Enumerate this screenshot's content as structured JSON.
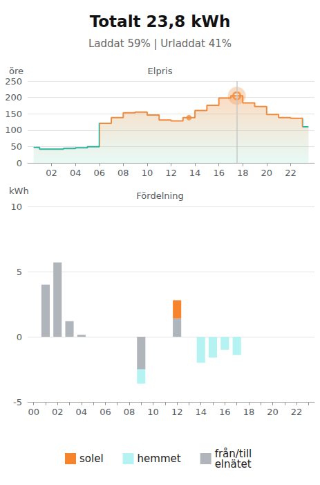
{
  "header": {
    "title": "Totalt 23,8 kWh",
    "subtitle": "Laddat 59% | Urladdat 41%"
  },
  "chart_data": [
    {
      "type": "line",
      "title": "Elpris",
      "y_label": "öre",
      "line_style": "step",
      "x": [
        0.5,
        1.5,
        2.5,
        3.5,
        4.5,
        5.5,
        6.5,
        7.5,
        8.5,
        9.5,
        10.5,
        11.5,
        12.5,
        13.5,
        14.5,
        15.5,
        16.5,
        17.5,
        18.5,
        19.5,
        20.5,
        21.5,
        22.5,
        23.5
      ],
      "values": [
        47,
        42,
        42,
        44,
        46,
        49,
        121,
        138,
        153,
        155,
        146,
        131,
        128,
        138,
        160,
        176,
        198,
        205,
        183,
        172,
        148,
        138,
        136,
        110
      ],
      "colors": [
        "#2ab3a0",
        "#2ab3a0",
        "#2ab3a0",
        "#2ab3a0",
        "#2ab3a0",
        "#2ab3a0",
        "#f08a3c",
        "#f08a3c",
        "#f08a3c",
        "#f08a3c",
        "#f08a3c",
        "#f08a3c",
        "#f08a3c",
        "#f08a3c",
        "#f08a3c",
        "#f08a3c",
        "#f08a3c",
        "#f08a3c",
        "#f08a3c",
        "#f08a3c",
        "#f08a3c",
        "#f08a3c",
        "#f08a3c",
        "#2ab3a0"
      ],
      "current_x": 13.5,
      "highlight_x": 17.5,
      "xlim": [
        0,
        24
      ],
      "xticks": [
        {
          "value": 2,
          "label": "02"
        },
        {
          "value": 4,
          "label": "04"
        },
        {
          "value": 6,
          "label": "06"
        },
        {
          "value": 8,
          "label": "08"
        },
        {
          "value": 10,
          "label": "10"
        },
        {
          "value": 12,
          "label": "12"
        },
        {
          "value": 14,
          "label": "14"
        },
        {
          "value": 16,
          "label": "16"
        },
        {
          "value": 18,
          "label": "18"
        },
        {
          "value": 20,
          "label": "20"
        },
        {
          "value": 22,
          "label": "22"
        }
      ],
      "ylim": [
        0,
        250
      ],
      "yticks": [
        0,
        50,
        100,
        150,
        200,
        250
      ],
      "grid": true
    },
    {
      "type": "bar",
      "title": "Fördelning",
      "y_label": "kWh",
      "categories": [
        "00",
        null,
        "02",
        null,
        "04",
        null,
        "06",
        null,
        "08",
        null,
        "10",
        null,
        "12",
        null,
        "14",
        null,
        "16",
        null,
        "18",
        null,
        "20",
        null,
        "22",
        null
      ],
      "series": [
        {
          "name": "solel",
          "color": "#f5842c",
          "values": [
            0,
            0,
            0,
            0,
            0,
            0,
            0,
            0,
            0,
            0,
            0,
            0,
            1.4,
            0,
            0,
            0,
            0,
            0,
            0,
            0,
            0,
            0,
            0,
            0
          ]
        },
        {
          "name": "hemmet",
          "color": "#b5f3f3",
          "values": [
            0,
            0,
            0,
            0,
            0,
            0,
            0,
            0,
            0,
            -1.1,
            0,
            0,
            0,
            0,
            -2.0,
            -1.6,
            -1.0,
            -1.4,
            0,
            0,
            0,
            0,
            0,
            0
          ]
        },
        {
          "name": "från/till elnätet",
          "color": "#b0b5bb",
          "values": [
            0,
            4.0,
            5.7,
            1.2,
            0.15,
            0,
            0,
            0,
            0,
            -2.5,
            0,
            0,
            1.4,
            0,
            0,
            0,
            0,
            0,
            0,
            0,
            0,
            0,
            0,
            0
          ]
        }
      ],
      "stacked": true,
      "ylim": [
        -5,
        10
      ],
      "yticks": [
        -5,
        0,
        5,
        10
      ],
      "grid": true,
      "legend": "bottom"
    }
  ]
}
